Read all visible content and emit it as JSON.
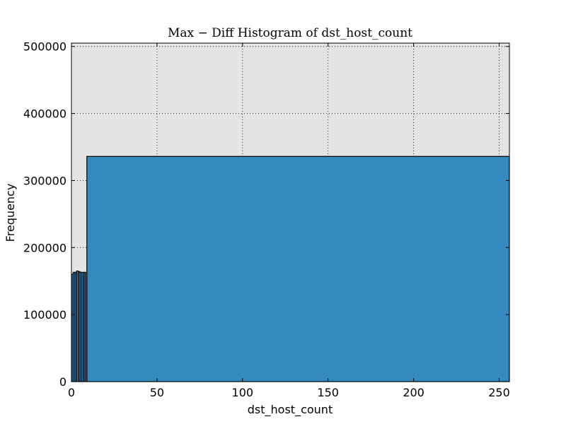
{
  "chart_data": {
    "type": "bar",
    "title": "Max − Diff Histogram of dst_host_count",
    "xlabel": "dst_host_count",
    "ylabel": "Frequency",
    "xlim": [
      0,
      256
    ],
    "ylim": [
      0,
      505000
    ],
    "xticks": [
      0,
      50,
      100,
      150,
      200,
      250
    ],
    "yticks": [
      0,
      100000,
      200000,
      300000,
      400000,
      500000
    ],
    "grid": true,
    "plot_background": "#e4e4e4",
    "bar_color": "#348abd",
    "bins": [
      {
        "start": 0,
        "end": 1,
        "value": 160000
      },
      {
        "start": 1,
        "end": 2,
        "value": 163000
      },
      {
        "start": 2,
        "end": 3,
        "value": 163000
      },
      {
        "start": 3,
        "end": 4,
        "value": 165000
      },
      {
        "start": 4,
        "end": 5,
        "value": 164000
      },
      {
        "start": 5,
        "end": 6,
        "value": 163000
      },
      {
        "start": 6,
        "end": 7,
        "value": 163000
      },
      {
        "start": 7,
        "end": 8,
        "value": 163000
      },
      {
        "start": 8,
        "end": 9,
        "value": 163000
      },
      {
        "start": 9,
        "end": 256,
        "value": 336000
      }
    ]
  }
}
